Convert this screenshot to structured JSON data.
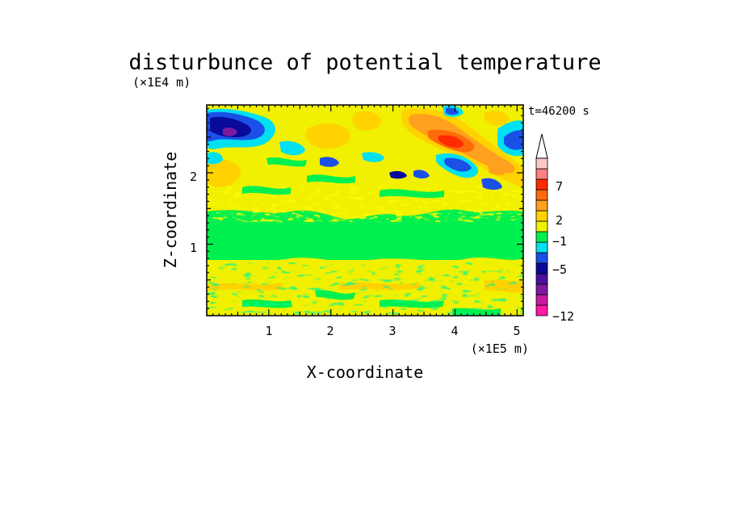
{
  "chart_data": {
    "type": "heatmap",
    "title": "disturbunce of potential temperature",
    "xlabel": "X-coordinate",
    "ylabel": "Z-coordinate",
    "x_scale_label": "(×1E5 m)",
    "y_scale_label": "(×1E4 m)",
    "time_label": "t=46200 s",
    "xlim": [
      0,
      5.1
    ],
    "ylim": [
      0,
      2.95
    ],
    "x_ticks": [
      "1",
      "2",
      "3",
      "4",
      "5"
    ],
    "y_ticks": [
      "1",
      "2"
    ],
    "colorbar": {
      "tick_labels": [
        "7",
        "2",
        "−1",
        "−5",
        "−12"
      ],
      "colors_bottom_to_top": [
        "#ff1aa8",
        "#c81a9e",
        "#7d1aa0",
        "#4a10a0",
        "#0a0a9a",
        "#1a50e8",
        "#00e0f0",
        "#00f050",
        "#f0f000",
        "#ffd200",
        "#ffa01e",
        "#ff6a0a",
        "#ff2a00",
        "#ff8080",
        "#ffc8c8"
      ],
      "extend": "max"
    }
  }
}
